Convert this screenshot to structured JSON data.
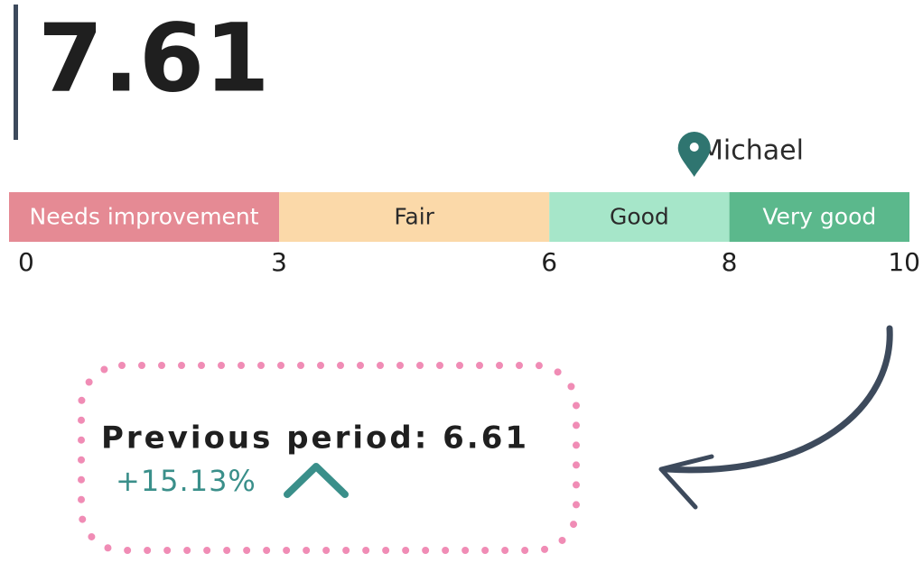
{
  "score": 7.61,
  "marker_label": "Michael",
  "scale": {
    "ticks": [
      0,
      3,
      6,
      8,
      10
    ],
    "bands": [
      {
        "label": "Needs improvement",
        "color": "#e58a94",
        "text_color": "#ffffff"
      },
      {
        "label": "Fair",
        "color": "#fbd9a9",
        "text_color": "#2b2b2b"
      },
      {
        "label": "Good",
        "color": "#a6e6c9",
        "text_color": "#2b2b2b"
      },
      {
        "label": "Very good",
        "color": "#5bb88c",
        "text_color": "#ffffff"
      }
    ]
  },
  "previous": {
    "label": "Previous period: 6.61",
    "change": "+15.13%"
  }
}
